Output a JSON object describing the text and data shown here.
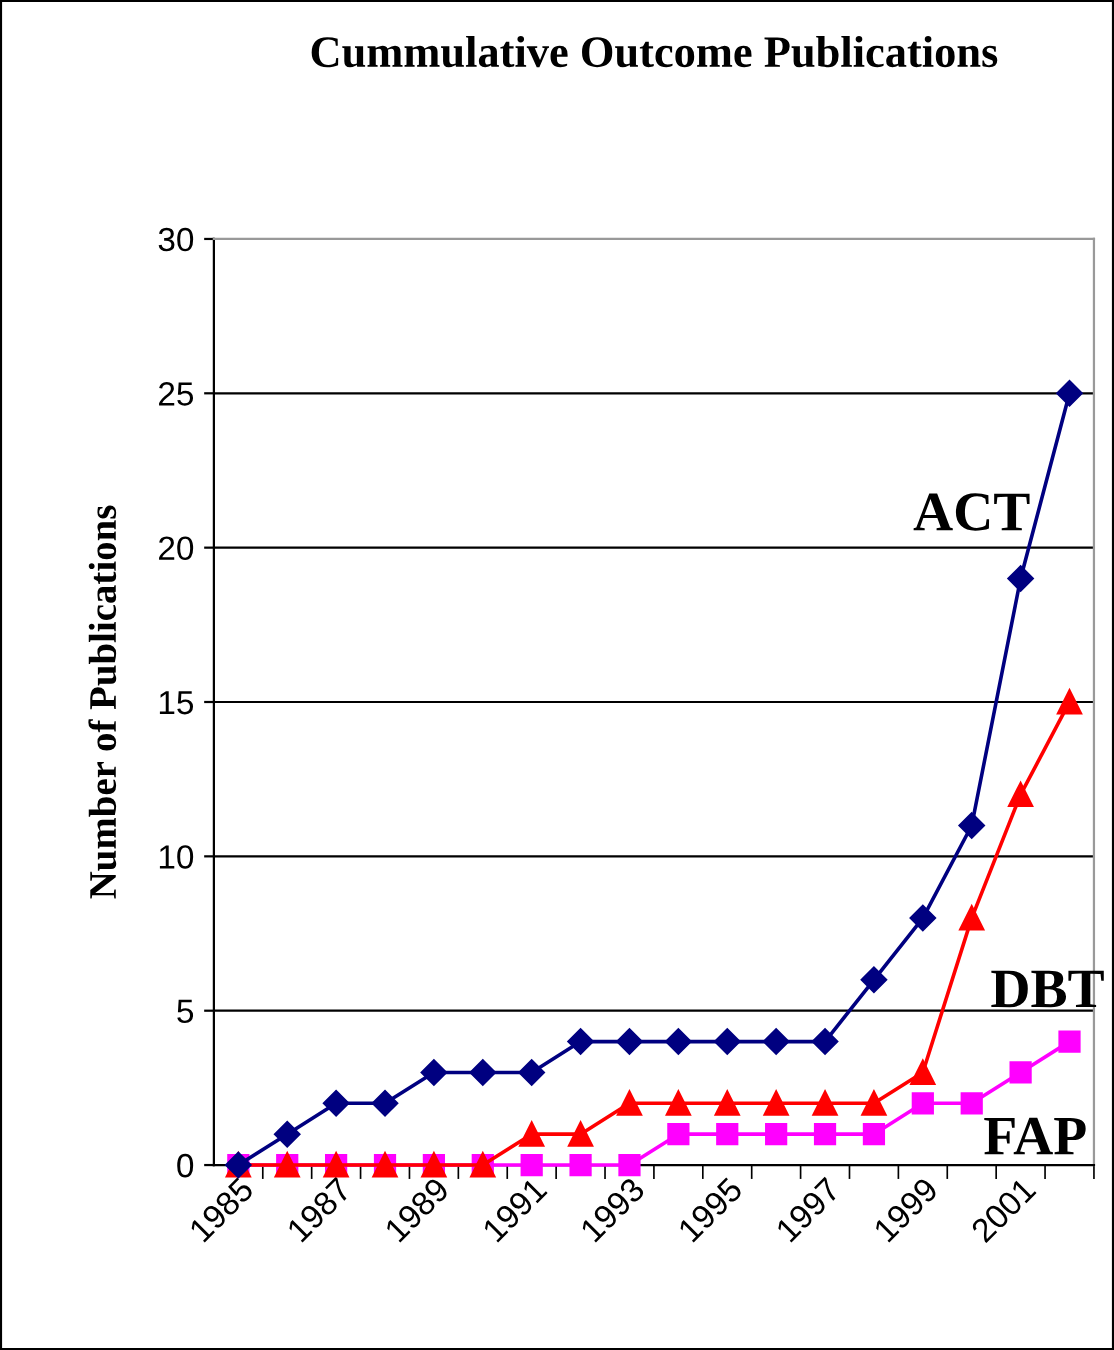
{
  "chart_data": {
    "type": "line",
    "title": "Cummulative Outcome Publications",
    "ylabel": "Number of Publications",
    "categories": [
      "1985",
      null,
      "1987",
      null,
      "1989",
      null,
      "1991",
      null,
      "1993",
      null,
      "1995",
      null,
      "1997",
      null,
      "1999",
      null,
      "2001",
      null
    ],
    "series": [
      {
        "name": "ACT",
        "color": "#000080",
        "marker": "diamond",
        "values": [
          0,
          1,
          2,
          2,
          3,
          3,
          3,
          4,
          4,
          4,
          4,
          4,
          4,
          6,
          8,
          11,
          19,
          25
        ]
      },
      {
        "name": "DBT",
        "color": "#ff0000",
        "marker": "triangle",
        "values": [
          0,
          0,
          0,
          0,
          0,
          0,
          1,
          1,
          2,
          2,
          2,
          2,
          2,
          2,
          3,
          8,
          12,
          15
        ]
      },
      {
        "name": "FAP",
        "color": "#ff00ff",
        "marker": "square",
        "values": [
          0,
          0,
          0,
          0,
          0,
          0,
          0,
          0,
          0,
          1,
          1,
          1,
          1,
          1,
          2,
          2,
          3,
          4
        ]
      }
    ],
    "ylim": [
      0,
      30
    ],
    "yticks": [
      0,
      5,
      10,
      15,
      20,
      25,
      30
    ],
    "grid": "y",
    "legend": false,
    "line_style": "solid"
  }
}
